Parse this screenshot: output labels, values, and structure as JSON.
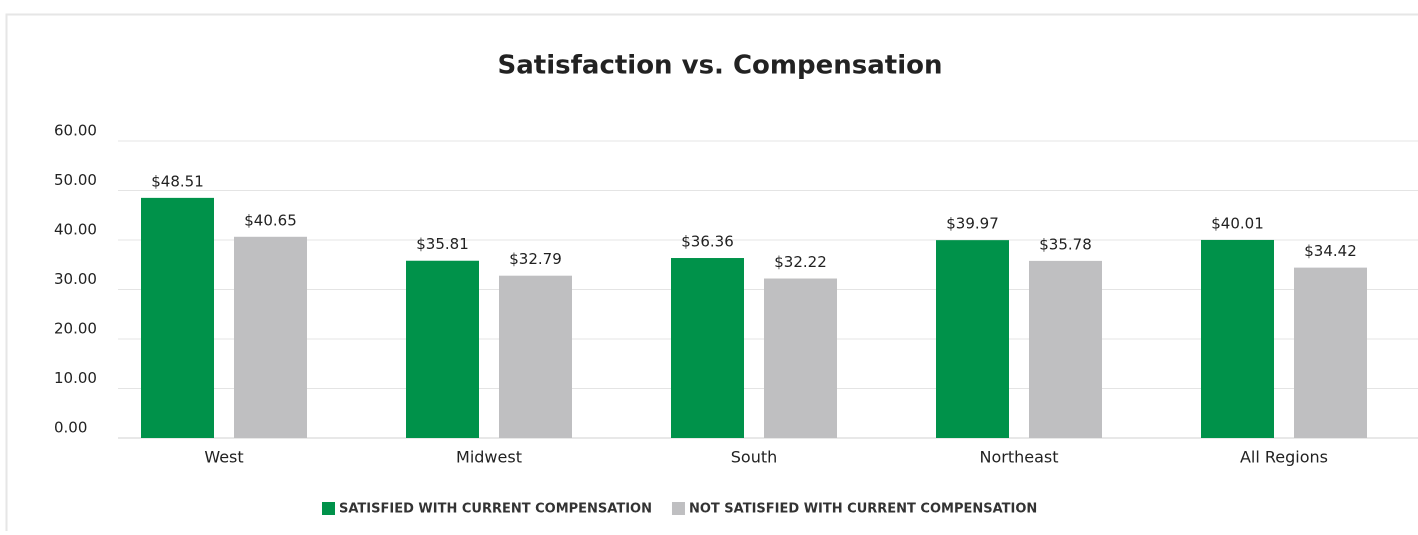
{
  "chart_data": {
    "type": "bar",
    "title": "Satisfaction vs. Compensation",
    "categories": [
      "West",
      "Midwest",
      "South",
      "Northeast",
      "All Regions"
    ],
    "series": [
      {
        "name": "SATISFIED WITH CURRENT COMPENSATION",
        "color": "#00924a",
        "values": [
          48.51,
          35.81,
          36.36,
          39.97,
          40.01
        ],
        "value_labels": [
          "$48.51",
          "$35.81",
          "$36.36",
          "$39.97",
          "$40.01"
        ]
      },
      {
        "name": "NOT SATISFIED WITH CURRENT COMPENSATION",
        "color": "#bfbfc1",
        "values": [
          40.65,
          32.79,
          32.22,
          35.78,
          34.42
        ],
        "value_labels": [
          "$40.65",
          "$32.79",
          "$32.22",
          "$35.78",
          "$34.42"
        ]
      }
    ],
    "ylim": [
      0,
      60
    ],
    "yticks": [
      {
        "value": 0,
        "label": "0.00"
      },
      {
        "value": 10,
        "label": "10.00"
      },
      {
        "value": 20,
        "label": "20.00"
      },
      {
        "value": 30,
        "label": "30.00"
      },
      {
        "value": 40,
        "label": "40.00"
      },
      {
        "value": 50,
        "label": "50.00"
      },
      {
        "value": 60,
        "label": "60.00"
      }
    ],
    "grid": true,
    "legend": "bottom"
  }
}
